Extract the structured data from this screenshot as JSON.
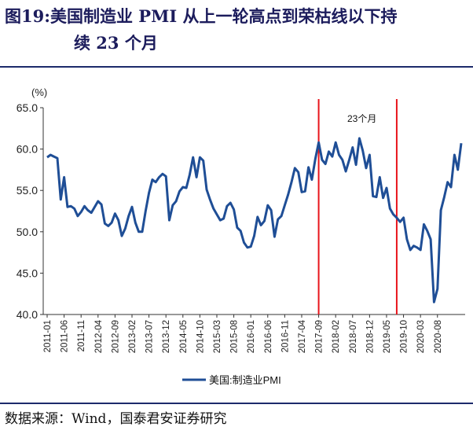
{
  "title": {
    "line1": "图19:美国制造业 PMI 从上一轮高点到荣枯线以下持",
    "line2": "续 23 个月"
  },
  "source": "数据来源：Wind，国泰君安证券研究",
  "chart_data": {
    "type": "line",
    "ylabel": "(%)",
    "ylim": [
      40,
      65
    ],
    "yticks": [
      "65.0",
      "60.0",
      "55.0",
      "50.0",
      "45.0",
      "40.0"
    ],
    "xticks": [
      "2011-01",
      "2011-06",
      "2011-11",
      "2012-04",
      "2012-09",
      "2013-02",
      "2013-07",
      "2013-12",
      "2014-05",
      "2014-10",
      "2015-03",
      "2015-08",
      "2016-01",
      "2016-06",
      "2016-11",
      "2017-04",
      "2017-09",
      "2018-02",
      "2018-07",
      "2018-12",
      "2019-05",
      "2019-10",
      "2020-03",
      "2020-08"
    ],
    "annotation": "23个月",
    "vlines": [
      "2017-09",
      "2019-08"
    ],
    "series": [
      {
        "name": "美国:制造业PMI",
        "color": "#1f4e96",
        "start": "2011-01",
        "values": [
          59.0,
          59.3,
          59.1,
          58.9,
          53.9,
          56.6,
          53.0,
          53.1,
          52.8,
          51.9,
          52.4,
          53.1,
          52.6,
          52.3,
          53.0,
          53.7,
          53.3,
          51.0,
          50.7,
          51.1,
          52.2,
          51.4,
          49.5,
          50.4,
          51.9,
          53.0,
          51.1,
          50.0,
          50.0,
          52.5,
          54.7,
          56.3,
          56.0,
          56.6,
          57.0,
          56.7,
          51.4,
          53.2,
          53.7,
          54.9,
          55.4,
          55.3,
          56.9,
          59.0,
          56.6,
          59.0,
          58.6,
          55.1,
          53.9,
          52.8,
          52.1,
          51.4,
          51.6,
          53.1,
          53.5,
          52.7,
          50.5,
          50.1,
          48.7,
          48.1,
          48.2,
          49.5,
          51.8,
          50.8,
          51.3,
          53.2,
          52.6,
          49.4,
          51.5,
          51.9,
          53.2,
          54.5,
          56.0,
          57.7,
          57.2,
          54.8,
          54.9,
          57.8,
          56.3,
          58.8,
          60.8,
          58.7,
          58.2,
          59.7,
          59.1,
          60.8,
          59.3,
          58.7,
          57.3,
          58.7,
          60.2,
          58.1,
          61.3,
          59.8,
          57.7,
          59.3,
          54.3,
          54.2,
          56.6,
          54.1,
          55.3,
          52.8,
          52.1,
          51.7,
          51.2,
          51.7,
          49.1,
          47.8,
          48.3,
          48.1,
          47.8,
          50.9,
          50.1,
          49.1,
          41.5,
          43.1,
          52.6,
          54.2,
          56.0,
          55.4,
          59.3,
          57.5,
          60.7
        ]
      }
    ]
  }
}
